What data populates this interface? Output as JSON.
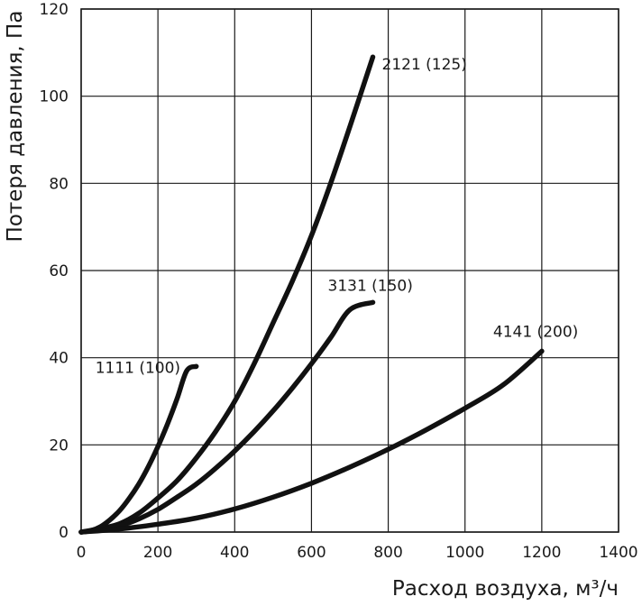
{
  "chart_data": {
    "type": "line",
    "xlabel": "Расход воздуха, м³/ч",
    "ylabel": "Потеря давления, Па",
    "xlim": [
      0,
      1400
    ],
    "ylim": [
      0,
      120
    ],
    "xticks": [
      0,
      200,
      400,
      600,
      800,
      1000,
      1200,
      1400
    ],
    "yticks": [
      0,
      20,
      40,
      60,
      80,
      100,
      120
    ],
    "grid": true,
    "series": [
      {
        "name": "1111 (100)",
        "x": [
          0,
          25,
          50,
          75,
          100,
          125,
          150,
          175,
          200,
          225,
          250,
          275,
          300
        ],
        "y": [
          0,
          0.3,
          1.2,
          2.8,
          4.9,
          7.7,
          11.0,
          15.0,
          19.6,
          24.8,
          30.6,
          37.0,
          38.0
        ]
      },
      {
        "name": "2121 (125)",
        "x": [
          0,
          50,
          100,
          150,
          200,
          250,
          300,
          350,
          400,
          450,
          500,
          550,
          600,
          650,
          700,
          760
        ],
        "y": [
          0,
          0.8,
          1.9,
          4.3,
          7.8,
          11.8,
          17.0,
          23.0,
          30.0,
          38.5,
          48.0,
          57.5,
          68.0,
          80.0,
          93.0,
          109.0
        ]
      },
      {
        "name": "3131 (150)",
        "x": [
          0,
          50,
          100,
          150,
          200,
          250,
          300,
          350,
          400,
          450,
          500,
          550,
          600,
          650,
          700,
          760
        ],
        "y": [
          0,
          0.5,
          1.4,
          3.0,
          5.2,
          8.0,
          11.0,
          14.6,
          18.6,
          23.0,
          27.8,
          33.0,
          38.6,
          44.6,
          51.0,
          52.7
        ]
      },
      {
        "name": "4141 (200)",
        "x": [
          0,
          100,
          200,
          300,
          400,
          500,
          600,
          700,
          800,
          900,
          1000,
          1100,
          1200
        ],
        "y": [
          0,
          0.7,
          1.8,
          3.2,
          5.3,
          8.0,
          11.2,
          14.9,
          19.0,
          23.5,
          28.4,
          33.8,
          41.5
        ]
      }
    ]
  }
}
